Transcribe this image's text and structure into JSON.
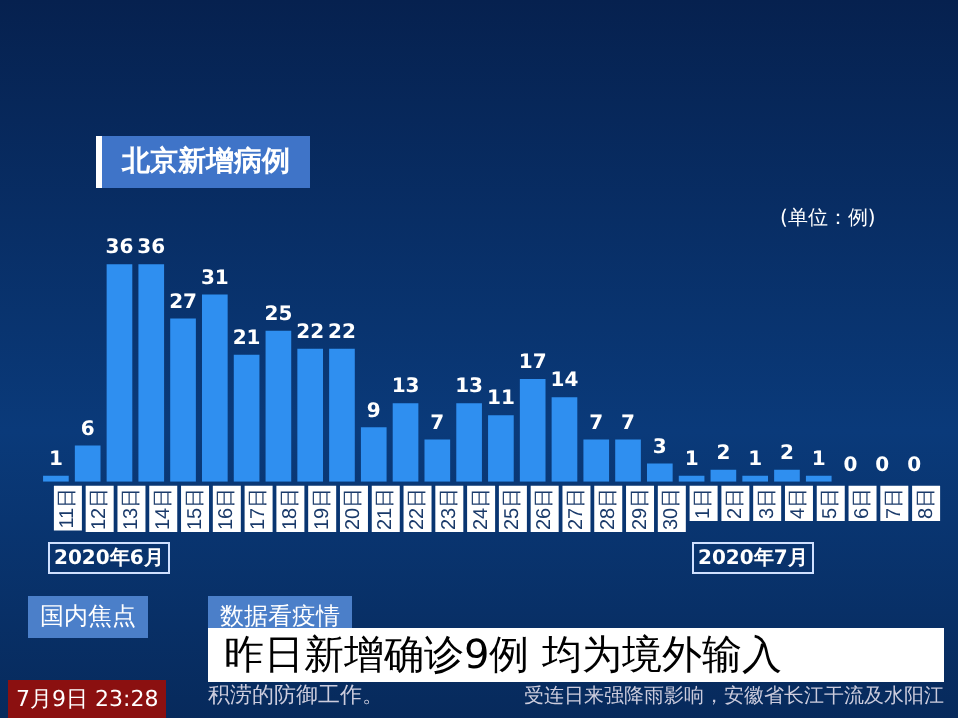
{
  "chart_data": {
    "type": "bar",
    "title": "北京新增病例",
    "categories": [
      "11日",
      "12日",
      "13日",
      "14日",
      "15日",
      "16日",
      "17日",
      "18日",
      "19日",
      "20日",
      "21日",
      "22日",
      "23日",
      "24日",
      "25日",
      "26日",
      "27日",
      "28日",
      "29日",
      "30日",
      "1日",
      "2日",
      "3日",
      "4日",
      "5日",
      "6日",
      "7日",
      "8日"
    ],
    "values": [
      1,
      6,
      36,
      36,
      27,
      31,
      21,
      25,
      22,
      22,
      9,
      13,
      7,
      13,
      11,
      17,
      14,
      7,
      7,
      3,
      1,
      2,
      1,
      2,
      1,
      0,
      0,
      0
    ],
    "color": "#2f8ff0",
    "data_labels": true,
    "grid": false,
    "legend": false,
    "tick_labels": "x",
    "annotations": [
      "(单位：例)",
      "2020年6月",
      "2020年7月",
      "国内焦点",
      "数据看疫情",
      "昨日新增确诊9例 均为境外输入",
      "7月9日 23:28",
      "积涝的防御工作。",
      "受连日来强降雨影响，安徽省长江干流及水阳江"
    ]
  }
}
